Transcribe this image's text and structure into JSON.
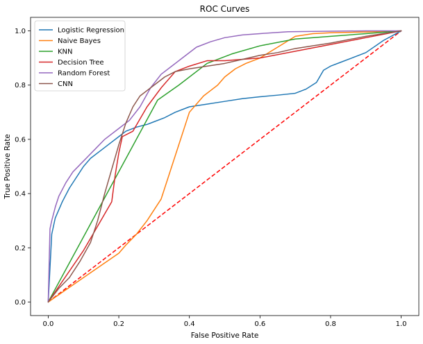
{
  "chart_data": {
    "type": "line",
    "title": "ROC Curves",
    "xlabel": "False Positive Rate",
    "ylabel": "True Positive Rate",
    "xlim": [
      -0.05,
      1.05
    ],
    "ylim": [
      -0.05,
      1.05
    ],
    "xticks": [
      0.0,
      0.2,
      0.4,
      0.6,
      0.8,
      1.0
    ],
    "yticks": [
      0.0,
      0.2,
      0.4,
      0.6,
      0.8,
      1.0
    ],
    "tick_labels": [
      "0.0",
      "0.2",
      "0.4",
      "0.6",
      "0.8",
      "1.0"
    ],
    "grid": false,
    "legend_position": "upper-left",
    "series": [
      {
        "name": "Logistic Regression",
        "color": "#1f77b4",
        "x": [
          0,
          0.01,
          0.02,
          0.04,
          0.06,
          0.08,
          0.1,
          0.12,
          0.15,
          0.18,
          0.2,
          0.22,
          0.25,
          0.28,
          0.3,
          0.33,
          0.36,
          0.4,
          0.45,
          0.5,
          0.55,
          0.6,
          0.65,
          0.7,
          0.73,
          0.76,
          0.78,
          0.8,
          0.83,
          0.86,
          0.9,
          0.95,
          1.0
        ],
        "y": [
          0,
          0.25,
          0.31,
          0.37,
          0.42,
          0.46,
          0.5,
          0.53,
          0.56,
          0.59,
          0.61,
          0.63,
          0.645,
          0.655,
          0.665,
          0.68,
          0.7,
          0.72,
          0.73,
          0.74,
          0.75,
          0.757,
          0.763,
          0.77,
          0.785,
          0.81,
          0.855,
          0.87,
          0.885,
          0.9,
          0.92,
          0.965,
          1.0
        ]
      },
      {
        "name": "Naive Bayes",
        "color": "#ff7f0e",
        "x": [
          0,
          0.1,
          0.2,
          0.22,
          0.25,
          0.28,
          0.3,
          0.32,
          0.33,
          0.34,
          0.35,
          0.36,
          0.37,
          0.38,
          0.39,
          0.4,
          0.42,
          0.44,
          0.46,
          0.48,
          0.5,
          0.53,
          0.56,
          0.6,
          0.65,
          0.7,
          0.75,
          0.8,
          0.9,
          1.0
        ],
        "y": [
          0,
          0.09,
          0.18,
          0.21,
          0.25,
          0.3,
          0.34,
          0.38,
          0.42,
          0.46,
          0.5,
          0.54,
          0.58,
          0.62,
          0.66,
          0.7,
          0.73,
          0.76,
          0.78,
          0.8,
          0.83,
          0.86,
          0.88,
          0.9,
          0.94,
          0.98,
          0.99,
          0.993,
          0.996,
          1.0
        ]
      },
      {
        "name": "KNN",
        "color": "#2ca02c",
        "x": [
          0,
          0.31,
          0.37,
          0.45,
          0.52,
          0.6,
          0.7,
          0.8,
          0.9,
          1.0
        ],
        "y": [
          0,
          0.745,
          0.8,
          0.88,
          0.915,
          0.945,
          0.97,
          0.98,
          0.99,
          1.0
        ]
      },
      {
        "name": "Decision Tree",
        "color": "#d62728",
        "x": [
          0,
          0.1,
          0.18,
          0.19,
          0.2,
          0.21,
          0.24,
          0.28,
          0.32,
          0.36,
          0.4,
          0.45,
          0.5,
          0.6,
          0.7,
          0.8,
          0.9,
          1.0
        ],
        "y": [
          0,
          0.19,
          0.37,
          0.47,
          0.55,
          0.61,
          0.63,
          0.72,
          0.79,
          0.85,
          0.87,
          0.89,
          0.89,
          0.9,
          0.925,
          0.95,
          0.975,
          1.0
        ]
      },
      {
        "name": "Random Forest",
        "color": "#9467bd",
        "x": [
          0,
          0.005,
          0.01,
          0.02,
          0.03,
          0.05,
          0.07,
          0.1,
          0.13,
          0.16,
          0.2,
          0.23,
          0.26,
          0.29,
          0.32,
          0.35,
          0.38,
          0.42,
          0.46,
          0.5,
          0.55,
          0.6,
          0.68,
          0.8,
          0.9,
          1.0
        ],
        "y": [
          0,
          0.27,
          0.3,
          0.35,
          0.39,
          0.44,
          0.48,
          0.52,
          0.56,
          0.6,
          0.64,
          0.67,
          0.72,
          0.79,
          0.84,
          0.87,
          0.9,
          0.94,
          0.96,
          0.975,
          0.985,
          0.99,
          0.997,
          0.999,
          1.0,
          1.0
        ]
      },
      {
        "name": "CNN",
        "color": "#8c564b",
        "x": [
          0,
          0.03,
          0.06,
          0.09,
          0.12,
          0.14,
          0.16,
          0.18,
          0.2,
          0.22,
          0.24,
          0.26,
          0.28,
          0.3,
          0.33,
          0.36,
          0.4,
          0.45,
          0.5,
          0.55,
          0.6,
          0.65,
          0.7,
          0.75,
          0.8,
          0.9,
          1.0
        ],
        "y": [
          0,
          0.05,
          0.09,
          0.15,
          0.22,
          0.3,
          0.4,
          0.49,
          0.58,
          0.66,
          0.72,
          0.76,
          0.78,
          0.8,
          0.83,
          0.85,
          0.86,
          0.87,
          0.88,
          0.895,
          0.91,
          0.92,
          0.935,
          0.945,
          0.955,
          0.98,
          1.0
        ]
      }
    ],
    "reference_line": {
      "x": [
        0,
        1
      ],
      "y": [
        0,
        1
      ],
      "color": "#ff0000",
      "style": "dashed"
    }
  }
}
